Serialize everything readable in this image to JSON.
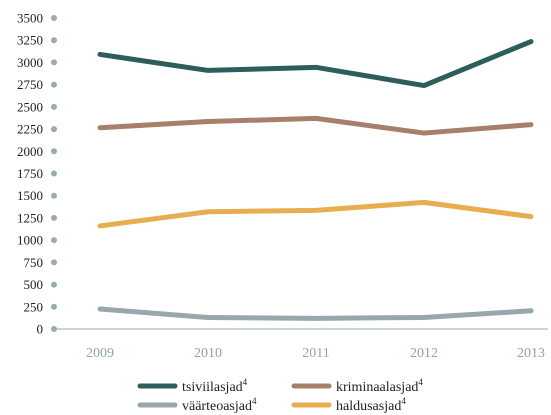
{
  "chart_data": {
    "type": "line",
    "categories": [
      "2009",
      "2010",
      "2011",
      "2012",
      "2013"
    ],
    "ylim": [
      0,
      3500
    ],
    "yticks": [
      0,
      250,
      500,
      750,
      1000,
      1250,
      1500,
      1750,
      2000,
      2250,
      2500,
      2750,
      3000,
      3250,
      3500
    ],
    "grid": false,
    "legend_position": "bottom",
    "series": [
      {
        "name": "tsiviilasjad",
        "sup": "4",
        "color": "#2d5e5c",
        "values": [
          3090,
          2910,
          2945,
          2740,
          3235
        ]
      },
      {
        "name": "kriminaalasjad",
        "sup": "4",
        "color": "#a87f6a",
        "values": [
          2265,
          2335,
          2370,
          2205,
          2300
        ]
      },
      {
        "name": "väärteoasjad",
        "sup": "4",
        "color": "#96a8a9",
        "values": [
          225,
          130,
          120,
          130,
          205
        ]
      },
      {
        "name": "haldusasjad",
        "sup": "4",
        "color": "#e8ad50",
        "values": [
          1160,
          1320,
          1335,
          1425,
          1265
        ]
      }
    ],
    "axis_dot_color": "#9aabad",
    "axis_line_color": "#9aabad"
  }
}
